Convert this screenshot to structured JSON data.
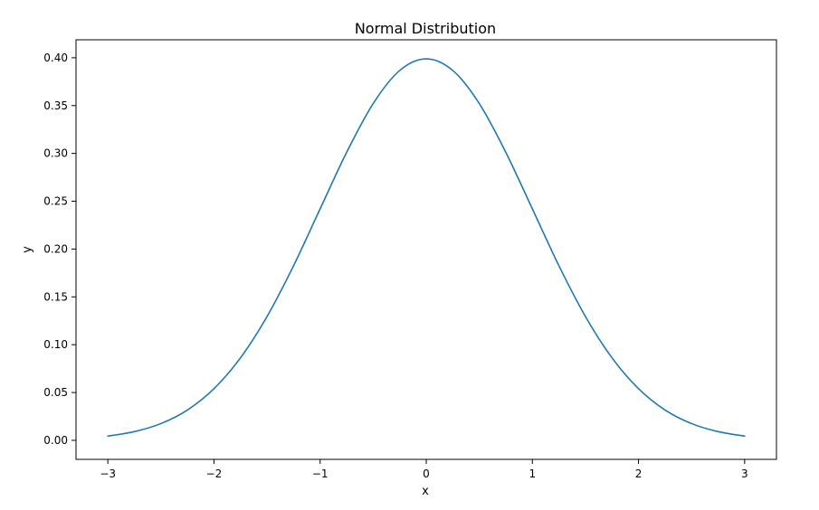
{
  "chart_data": {
    "type": "line",
    "title": "Normal Distribution",
    "xlabel": "x",
    "ylabel": "y",
    "xlim": [
      -3.3,
      3.3
    ],
    "ylim": [
      -0.0199,
      0.4188
    ],
    "x_ticks": [
      -3,
      -2,
      -1,
      0,
      1,
      2,
      3
    ],
    "x_tick_labels": [
      "−3",
      "−2",
      "−1",
      "0",
      "1",
      "2",
      "3"
    ],
    "y_ticks": [
      0.0,
      0.05,
      0.1,
      0.15,
      0.2,
      0.25,
      0.3,
      0.35,
      0.4
    ],
    "y_tick_labels": [
      "0.00",
      "0.05",
      "0.10",
      "0.15",
      "0.20",
      "0.25",
      "0.30",
      "0.35",
      "0.40"
    ],
    "grid": false,
    "series": [
      {
        "color": "#1f77b4",
        "x": [
          -3.0,
          -2.75,
          -2.5,
          -2.25,
          -2.0,
          -1.75,
          -1.5,
          -1.25,
          -1.0,
          -0.75,
          -0.5,
          -0.25,
          0.0,
          0.25,
          0.5,
          0.75,
          1.0,
          1.25,
          1.5,
          1.75,
          2.0,
          2.25,
          2.5,
          2.75,
          3.0
        ],
        "y": [
          0.0044,
          0.0091,
          0.0175,
          0.0317,
          0.054,
          0.0863,
          0.1295,
          0.1826,
          0.242,
          0.3011,
          0.3521,
          0.3867,
          0.3989,
          0.3867,
          0.3521,
          0.3011,
          0.242,
          0.1826,
          0.1295,
          0.0863,
          0.054,
          0.0317,
          0.0175,
          0.0091,
          0.0044
        ]
      }
    ]
  }
}
